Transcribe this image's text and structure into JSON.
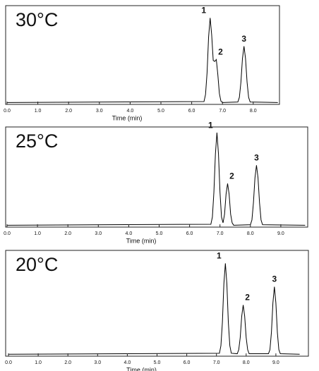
{
  "chart_data": [
    {
      "type": "line",
      "title": "30°C",
      "xlabel": "Time (min)",
      "color": "#000000",
      "x": [
        0,
        6.4,
        6.45,
        6.5,
        6.55,
        6.6,
        6.65,
        6.7,
        6.75,
        6.8,
        6.85,
        6.9,
        6.95,
        7.0,
        7.5,
        7.55,
        7.6,
        7.65,
        7.7,
        7.75,
        7.8,
        7.85,
        7.9,
        8.8
      ],
      "values": [
        0.5,
        1.5,
        9,
        32,
        70,
        90,
        72,
        45,
        44,
        46,
        30,
        10,
        2,
        0.5,
        1,
        6,
        22,
        47,
        60,
        47,
        22,
        6,
        1,
        0.5
      ],
      "peak_labels": [
        "1",
        "2",
        "3"
      ],
      "xlim": [
        0,
        8.8
      ],
      "ylim": [
        0,
        100
      ],
      "xticks": [
        {
          "value": 0,
          "label": "0.0"
        },
        {
          "value": 1,
          "label": "1.0"
        },
        {
          "value": 2,
          "label": "2.0"
        },
        {
          "value": 3,
          "label": "3.0"
        },
        {
          "value": 4,
          "label": "4.0"
        },
        {
          "value": 5,
          "label": "5.0"
        },
        {
          "value": 6,
          "label": "6.0"
        },
        {
          "value": 7,
          "label": "7.0"
        },
        {
          "value": 8,
          "label": "8.0"
        }
      ]
    },
    {
      "type": "line",
      "title": "25°C",
      "xlabel": "Time (min)",
      "color": "#000000",
      "x": [
        0,
        6.7,
        6.75,
        6.8,
        6.85,
        6.9,
        6.95,
        7.0,
        7.05,
        7.1,
        7.15,
        7.2,
        7.25,
        7.3,
        7.35,
        7.4,
        7.45,
        8.0,
        8.05,
        8.1,
        8.15,
        8.2,
        8.25,
        8.3,
        8.35,
        8.4,
        9.8
      ],
      "values": [
        0.5,
        1.5,
        9,
        35,
        75,
        97,
        75,
        35,
        9,
        3,
        12,
        33,
        44,
        33,
        12,
        3,
        0.5,
        1,
        6,
        24,
        50,
        63,
        50,
        24,
        6,
        1,
        0.5
      ],
      "peak_labels": [
        "1",
        "2",
        "3"
      ],
      "xlim": [
        0,
        9.8
      ],
      "ylim": [
        0,
        100
      ],
      "xticks": [
        {
          "value": 0,
          "label": "0.0"
        },
        {
          "value": 1,
          "label": "1.0"
        },
        {
          "value": 2,
          "label": "2.0"
        },
        {
          "value": 3,
          "label": "3.0"
        },
        {
          "value": 4,
          "label": "4.0"
        },
        {
          "value": 5,
          "label": "5.0"
        },
        {
          "value": 6,
          "label": "6.0"
        },
        {
          "value": 7,
          "label": "7.0"
        },
        {
          "value": 8,
          "label": "8.0"
        },
        {
          "value": 9,
          "label": "9.0"
        }
      ]
    },
    {
      "type": "line",
      "title": "20°C",
      "xlabel": "Time (min)",
      "color": "#000000",
      "x": [
        0,
        7.1,
        7.15,
        7.2,
        7.25,
        7.3,
        7.35,
        7.4,
        7.45,
        7.5,
        7.7,
        7.75,
        7.8,
        7.85,
        7.9,
        7.95,
        8.0,
        8.05,
        8.1,
        8.75,
        8.8,
        8.85,
        8.9,
        8.95,
        9.0,
        9.05,
        9.1,
        9.15,
        9.8
      ],
      "values": [
        0.5,
        1.5,
        9,
        32,
        70,
        90,
        70,
        32,
        9,
        1.5,
        1,
        5,
        17,
        38,
        49,
        38,
        17,
        5,
        1,
        1,
        5,
        22,
        51,
        67,
        51,
        22,
        5,
        1,
        0.5
      ],
      "peak_labels": [
        "1",
        "2",
        "3"
      ],
      "xlim": [
        0,
        9.8
      ],
      "ylim": [
        0,
        100
      ],
      "xticks": [
        {
          "value": 0,
          "label": "0.0"
        },
        {
          "value": 1,
          "label": "1.0"
        },
        {
          "value": 2,
          "label": "2.0"
        },
        {
          "value": 3,
          "label": "3.0"
        },
        {
          "value": 4,
          "label": "4.0"
        },
        {
          "value": 5,
          "label": "5.0"
        },
        {
          "value": 6,
          "label": "6.0"
        },
        {
          "value": 7,
          "label": "7.0"
        },
        {
          "value": 8,
          "label": "8.0"
        },
        {
          "value": 9,
          "label": "9.0"
        }
      ]
    }
  ]
}
